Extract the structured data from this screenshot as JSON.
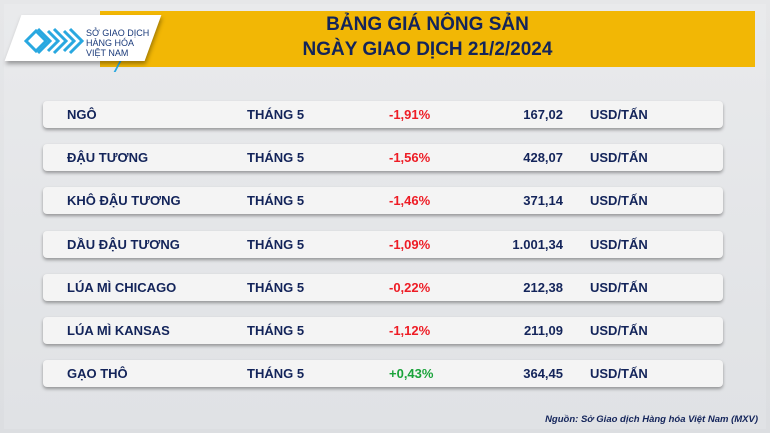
{
  "header": {
    "title_line1": "BẢNG GIÁ NÔNG SẢN",
    "title_line2": "NGÀY GIAO DỊCH 21/2/2024",
    "accent_color": "#f2b705"
  },
  "logo": {
    "line1": "SỞ GIAO DỊCH",
    "line2": "HÀNG HÓA",
    "line3": "VIỆT NAM",
    "icon": "mxv-logo-icon"
  },
  "rows": [
    {
      "name": "NGÔ",
      "term": "THÁNG 5",
      "change": "-1,91%",
      "price": "167,02",
      "unit": "USD/TẤN",
      "dir": "neg"
    },
    {
      "name": "ĐẬU TƯƠNG",
      "term": "THÁNG 5",
      "change": "-1,56%",
      "price": "428,07",
      "unit": "USD/TẤN",
      "dir": "neg"
    },
    {
      "name": "KHÔ ĐẬU TƯƠNG",
      "term": "THÁNG 5",
      "change": "-1,46%",
      "price": "371,14",
      "unit": "USD/TẤN",
      "dir": "neg"
    },
    {
      "name": "DẦU ĐẬU TƯƠNG",
      "term": "THÁNG 5",
      "change": "-1,09%",
      "price": "1.001,34",
      "unit": "USD/TẤN",
      "dir": "neg"
    },
    {
      "name": "LÚA MÌ CHICAGO",
      "term": "THÁNG 5",
      "change": "-0,22%",
      "price": "212,38",
      "unit": "USD/TẤN",
      "dir": "neg"
    },
    {
      "name": "LÚA MÌ KANSAS",
      "term": "THÁNG 5",
      "change": "-1,12%",
      "price": "211,09",
      "unit": "USD/TẤN",
      "dir": "neg"
    },
    {
      "name": "GẠO THÔ",
      "term": "THÁNG 5",
      "change": "+0,43%",
      "price": "364,45",
      "unit": "USD/TẤN",
      "dir": "pos"
    }
  ],
  "colors": {
    "negative": "#ee1c25",
    "positive": "#1aa33a",
    "text": "#13245a"
  },
  "source": "Nguồn: Sở Giao dịch Hàng hóa Việt Nam (MXV)"
}
